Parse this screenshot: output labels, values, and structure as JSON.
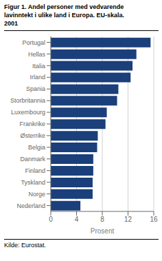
{
  "chart_data": {
    "type": "bar",
    "orientation": "horizontal",
    "title": "Figur 1. Andel personer med vedvarende\nlavinntekt i ulike land i Europa. EU-skala.\n2001",
    "categories": [
      "Portugal",
      "Hellas",
      "Italia",
      "Irland",
      "Spania",
      "Storbritannia",
      "Luxembourg",
      "Frankrike",
      "Østerrike",
      "Belgia",
      "Danmark",
      "Finland",
      "Tyskland",
      "Norge",
      "Nederland"
    ],
    "values": [
      15.5,
      13.3,
      12.7,
      12.4,
      10.5,
      10.3,
      8.7,
      8.5,
      7.3,
      7.2,
      6.6,
      6.6,
      6.5,
      6.5,
      4.6
    ],
    "color": "#1a3f7a",
    "xlabel": "Prosent",
    "xlim": [
      0,
      16
    ],
    "xticks": [
      0,
      4,
      8,
      12,
      16
    ],
    "grid": true,
    "footnote": "Kilde: Eurostat."
  }
}
